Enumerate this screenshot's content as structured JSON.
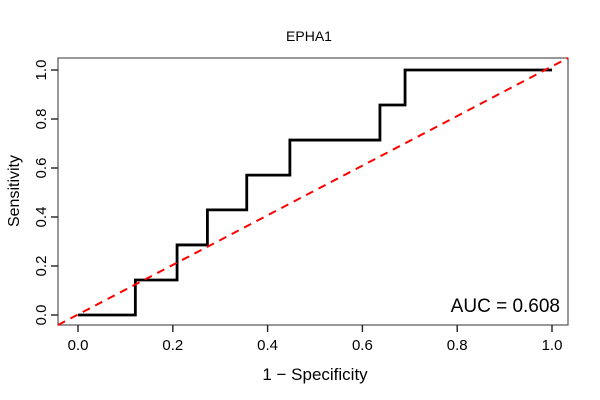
{
  "chart_data": {
    "type": "line",
    "title": "EPHA1",
    "xlabel": "1 − Specificity",
    "ylabel": "Sensitivity",
    "annotation": "AUC = 0.608",
    "auc_value": 0.608,
    "xlim": [
      0.0,
      1.0
    ],
    "ylim": [
      0.0,
      1.0
    ],
    "x_ticks": [
      "0.0",
      "0.2",
      "0.4",
      "0.6",
      "0.8",
      "1.0"
    ],
    "y_ticks": [
      "0.0",
      "0.2",
      "0.4",
      "0.6",
      "0.8",
      "1.0"
    ],
    "grid": false,
    "legend": "none",
    "series": [
      {
        "name": "roc-step-curve",
        "kind": "step",
        "color": "#000000",
        "line_style": "solid",
        "line_width": 2.8,
        "points": [
          [
            0.0,
            0.0
          ],
          [
            0.121,
            0.0
          ],
          [
            0.121,
            0.143
          ],
          [
            0.209,
            0.143
          ],
          [
            0.209,
            0.286
          ],
          [
            0.273,
            0.286
          ],
          [
            0.273,
            0.429
          ],
          [
            0.356,
            0.429
          ],
          [
            0.356,
            0.571
          ],
          [
            0.447,
            0.571
          ],
          [
            0.447,
            0.714
          ],
          [
            0.637,
            0.714
          ],
          [
            0.637,
            0.857
          ],
          [
            0.69,
            0.857
          ],
          [
            0.69,
            1.0
          ],
          [
            1.0,
            1.0
          ]
        ]
      },
      {
        "name": "chance-diagonal",
        "kind": "reference-line",
        "color": "#FF0000",
        "line_style": "dashed",
        "line_width": 2,
        "extend_to_plot_corners": true,
        "points": [
          [
            0.0,
            0.0
          ],
          [
            1.0,
            1.0
          ]
        ]
      }
    ]
  },
  "colors": {
    "background": "#FFFFFF",
    "box": "#555555",
    "tick": "#222222",
    "text": "#000000",
    "curve": "#000000",
    "diagonal": "#FF0000"
  }
}
